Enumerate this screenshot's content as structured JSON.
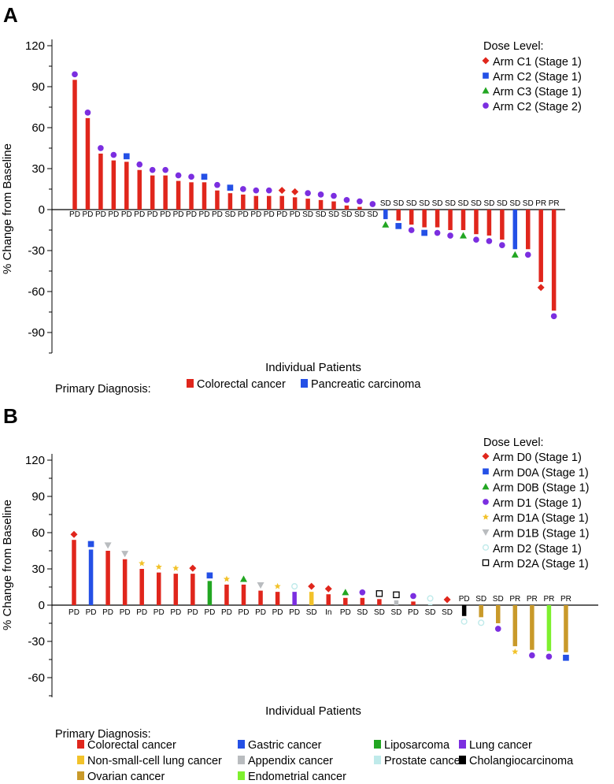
{
  "chart_data": [
    {
      "type": "bar",
      "panel_label": "A",
      "title": "",
      "xlabel": "Individual Patients",
      "ylabel": "% Change from Baseline",
      "ylim": [
        -110,
        120
      ],
      "yticks": [
        120,
        90,
        60,
        30,
        0,
        -30,
        -60,
        -90
      ],
      "grid": false,
      "legend_position": "top-right",
      "dose_legend_title": "Dose Level:",
      "arms": [
        {
          "name": "Arm C1 (Stage 1)",
          "marker": "diamond",
          "color": "#e0261c"
        },
        {
          "name": "Arm C2 (Stage 1)",
          "marker": "square",
          "color": "#2450e6"
        },
        {
          "name": "Arm C3 (Stage 1)",
          "marker": "triangle",
          "color": "#22a622"
        },
        {
          "name": "Arm C2 (Stage 2)",
          "marker": "circle",
          "color": "#7b2ee0"
        }
      ],
      "diagnosis_legend_title": "Primary Diagnosis:",
      "diagnoses": [
        {
          "name": "Colorectal cancer",
          "color": "#e0261c"
        },
        {
          "name": "Pancreatic carcinoma",
          "color": "#2450e6"
        }
      ],
      "patients": [
        {
          "value": 95,
          "response": "PD",
          "diagnosis": 0,
          "arm": 3
        },
        {
          "value": 67,
          "response": "PD",
          "diagnosis": 0,
          "arm": 3
        },
        {
          "value": 41,
          "response": "PD",
          "diagnosis": 0,
          "arm": 3
        },
        {
          "value": 36,
          "response": "PD",
          "diagnosis": 0,
          "arm": 3
        },
        {
          "value": 35,
          "response": "PD",
          "diagnosis": 0,
          "arm": 1
        },
        {
          "value": 29,
          "response": "PD",
          "diagnosis": 0,
          "arm": 3
        },
        {
          "value": 25,
          "response": "PD",
          "diagnosis": 0,
          "arm": 3
        },
        {
          "value": 25,
          "response": "PD",
          "diagnosis": 0,
          "arm": 3
        },
        {
          "value": 21,
          "response": "PD",
          "diagnosis": 0,
          "arm": 3
        },
        {
          "value": 20,
          "response": "PD",
          "diagnosis": 0,
          "arm": 3
        },
        {
          "value": 20,
          "response": "PD",
          "diagnosis": 0,
          "arm": 1
        },
        {
          "value": 14,
          "response": "PD",
          "diagnosis": 0,
          "arm": 3
        },
        {
          "value": 12,
          "response": "SD",
          "diagnosis": 0,
          "arm": 1
        },
        {
          "value": 11,
          "response": "PD",
          "diagnosis": 0,
          "arm": 3
        },
        {
          "value": 10,
          "response": "PD",
          "diagnosis": 0,
          "arm": 3
        },
        {
          "value": 10,
          "response": "PD",
          "diagnosis": 0,
          "arm": 3
        },
        {
          "value": 10,
          "response": "PD",
          "diagnosis": 0,
          "arm": 0
        },
        {
          "value": 9,
          "response": "PD",
          "diagnosis": 0,
          "arm": 0
        },
        {
          "value": 8,
          "response": "SD",
          "diagnosis": 0,
          "arm": 3
        },
        {
          "value": 7,
          "response": "SD",
          "diagnosis": 0,
          "arm": 3
        },
        {
          "value": 6,
          "response": "SD",
          "diagnosis": 0,
          "arm": 3
        },
        {
          "value": 3,
          "response": "SD",
          "diagnosis": 0,
          "arm": 3
        },
        {
          "value": 2,
          "response": "SD",
          "diagnosis": 0,
          "arm": 3
        },
        {
          "value": 0,
          "response": "SD",
          "diagnosis": 0,
          "arm": 3
        },
        {
          "value": -7,
          "response": "SD",
          "diagnosis": 1,
          "arm": 2
        },
        {
          "value": -8,
          "response": "SD",
          "diagnosis": 0,
          "arm": 1
        },
        {
          "value": -11,
          "response": "SD",
          "diagnosis": 0,
          "arm": 3
        },
        {
          "value": -13,
          "response": "SD",
          "diagnosis": 0,
          "arm": 1
        },
        {
          "value": -13,
          "response": "SD",
          "diagnosis": 0,
          "arm": 3
        },
        {
          "value": -15,
          "response": "SD",
          "diagnosis": 0,
          "arm": 3
        },
        {
          "value": -15,
          "response": "SD",
          "diagnosis": 0,
          "arm": 2
        },
        {
          "value": -18,
          "response": "SD",
          "diagnosis": 0,
          "arm": 3
        },
        {
          "value": -19,
          "response": "SD",
          "diagnosis": 0,
          "arm": 3
        },
        {
          "value": -22,
          "response": "SD",
          "diagnosis": 0,
          "arm": 3
        },
        {
          "value": -29,
          "response": "SD",
          "diagnosis": 1,
          "arm": 2
        },
        {
          "value": -29,
          "response": "SD",
          "diagnosis": 0,
          "arm": 3
        },
        {
          "value": -53,
          "response": "PR",
          "diagnosis": 0,
          "arm": 0
        },
        {
          "value": -74,
          "response": "PR",
          "diagnosis": 0,
          "arm": 3
        }
      ]
    },
    {
      "type": "bar",
      "panel_label": "B",
      "title": "",
      "xlabel": "Individual Patients",
      "ylabel": "% Change from Baseline",
      "ylim": [
        -80,
        120
      ],
      "yticks": [
        120,
        90,
        60,
        30,
        0,
        -30,
        -60
      ],
      "grid": false,
      "legend_position": "top-right",
      "dose_legend_title": "Dose Level:",
      "arms": [
        {
          "name": "Arm D0 (Stage 1)",
          "marker": "diamond",
          "color": "#e0261c"
        },
        {
          "name": "Arm D0A (Stage 1)",
          "marker": "square",
          "color": "#2450e6"
        },
        {
          "name": "Arm D0B (Stage 1)",
          "marker": "triangle",
          "color": "#22a622"
        },
        {
          "name": "Arm D1 (Stage 1)",
          "marker": "circle",
          "color": "#7b2ee0"
        },
        {
          "name": "Arm D1A (Stage 1)",
          "marker": "star",
          "color": "#f2c22a"
        },
        {
          "name": "Arm D1B (Stage 1)",
          "marker": "triangle-down",
          "color": "#b9bcbf"
        },
        {
          "name": "Arm D2 (Stage 1)",
          "marker": "circle-open",
          "color": "#bfeaea"
        },
        {
          "name": "Arm D2A (Stage 1)",
          "marker": "square-open",
          "color": "#000000"
        }
      ],
      "diagnosis_legend_title": "Primary Diagnosis:",
      "diagnoses": [
        {
          "name": "Colorectal cancer",
          "color": "#e0261c"
        },
        {
          "name": "Gastric cancer",
          "color": "#2450e6"
        },
        {
          "name": "Liposarcoma",
          "color": "#22a622"
        },
        {
          "name": "Lung cancer",
          "color": "#7b2ee0"
        },
        {
          "name": "Non-small-cell lung cancer",
          "color": "#f2c22a"
        },
        {
          "name": "Appendix cancer",
          "color": "#b9bcbf"
        },
        {
          "name": "Prostate cancer",
          "color": "#bfeaea"
        },
        {
          "name": "Cholangiocarcinoma",
          "color": "#000000"
        },
        {
          "name": "Ovarian cancer",
          "color": "#c99a2a"
        },
        {
          "name": "Endometrial cancer",
          "color": "#7ef02e"
        }
      ],
      "patients": [
        {
          "value": 54,
          "response": "PD",
          "diagnosis": 0,
          "arm": 0
        },
        {
          "value": 46,
          "response": "PD",
          "diagnosis": 1,
          "arm": 1
        },
        {
          "value": 45,
          "response": "PD",
          "diagnosis": 0,
          "arm": 5
        },
        {
          "value": 38,
          "response": "PD",
          "diagnosis": 0,
          "arm": 5
        },
        {
          "value": 30,
          "response": "PD",
          "diagnosis": 0,
          "arm": 4
        },
        {
          "value": 27,
          "response": "PD",
          "diagnosis": 0,
          "arm": 4
        },
        {
          "value": 26,
          "response": "PD",
          "diagnosis": 0,
          "arm": 4
        },
        {
          "value": 26,
          "response": "PD",
          "diagnosis": 0,
          "arm": 0
        },
        {
          "value": 20,
          "response": "PD",
          "diagnosis": 2,
          "arm": 1
        },
        {
          "value": 17,
          "response": "PD",
          "diagnosis": 0,
          "arm": 4
        },
        {
          "value": 17,
          "response": "PD",
          "diagnosis": 0,
          "arm": 2
        },
        {
          "value": 12,
          "response": "PD",
          "diagnosis": 0,
          "arm": 5
        },
        {
          "value": 11,
          "response": "PD",
          "diagnosis": 0,
          "arm": 4
        },
        {
          "value": 11,
          "response": "PD",
          "diagnosis": 3,
          "arm": 6
        },
        {
          "value": 11,
          "response": "SD",
          "diagnosis": 4,
          "arm": 0
        },
        {
          "value": 9,
          "response": "In",
          "diagnosis": 0,
          "arm": 0
        },
        {
          "value": 6,
          "response": "PD",
          "diagnosis": 0,
          "arm": 2
        },
        {
          "value": 6,
          "response": "SD",
          "diagnosis": 0,
          "arm": 3
        },
        {
          "value": 5,
          "response": "SD",
          "diagnosis": 0,
          "arm": 7
        },
        {
          "value": 4,
          "response": "SD",
          "diagnosis": 5,
          "arm": 7
        },
        {
          "value": 3,
          "response": "PD",
          "diagnosis": 0,
          "arm": 3
        },
        {
          "value": 1,
          "response": "SD",
          "diagnosis": 6,
          "arm": 6
        },
        {
          "value": 0,
          "response": "SD",
          "diagnosis": 0,
          "arm": 0
        },
        {
          "value": -9,
          "response": "PD",
          "diagnosis": 7,
          "arm": 6
        },
        {
          "value": -10,
          "response": "SD",
          "diagnosis": 8,
          "arm": 6
        },
        {
          "value": -15,
          "response": "SD",
          "diagnosis": 8,
          "arm": 3
        },
        {
          "value": -34,
          "response": "PR",
          "diagnosis": 8,
          "arm": 4
        },
        {
          "value": -37,
          "response": "PR",
          "diagnosis": 8,
          "arm": 3
        },
        {
          "value": -38,
          "response": "PR",
          "diagnosis": 9,
          "arm": 3
        },
        {
          "value": -39,
          "response": "PR",
          "diagnosis": 8,
          "arm": 1
        }
      ]
    }
  ]
}
